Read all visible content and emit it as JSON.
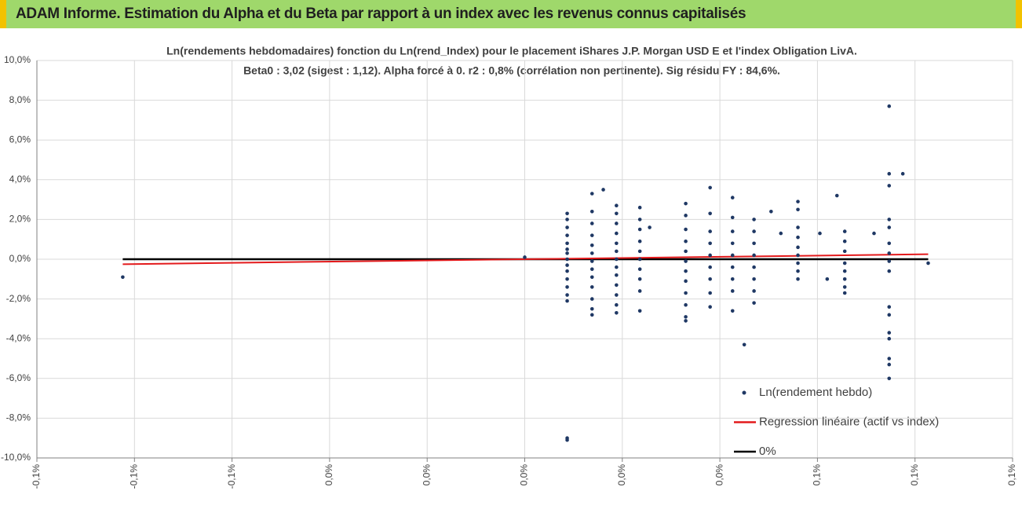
{
  "header": {
    "title": "ADAM Informe. Estimation du Alpha et du Beta par rapport à un index avec les revenus connus capitalisés"
  },
  "chart_data": {
    "type": "scatter",
    "title": "Ln(rendements hebdomadaires) fonction du Ln(rend_Index) pour le placement iShares J.P. Morgan USD E et l'index Obligation LivA.",
    "subtitle": "Beta0 : 3,02 (sigest : 1,12). Alpha forcé à 0. r2 : 0,8% (corrélation non pertinente). Sig résidu FY : 84,6%.",
    "xlim": [
      -0.1,
      0.1
    ],
    "ylim": [
      -10,
      10
    ],
    "xticks": [
      {
        "value": -0.1,
        "label": "-0,1%"
      },
      {
        "value": -0.08,
        "label": "-0,1%"
      },
      {
        "value": -0.06,
        "label": "-0,1%"
      },
      {
        "value": -0.04,
        "label": "0,0%"
      },
      {
        "value": -0.02,
        "label": "0,0%"
      },
      {
        "value": 0,
        "label": "0,0%"
      },
      {
        "value": 0.02,
        "label": "0,0%"
      },
      {
        "value": 0.04,
        "label": "0,0%"
      },
      {
        "value": 0.06,
        "label": "0,1%"
      },
      {
        "value": 0.08,
        "label": "0,1%"
      },
      {
        "value": 0.1,
        "label": "0,1%"
      }
    ],
    "yticks": [
      {
        "value": 10,
        "label": "10,0%"
      },
      {
        "value": 8,
        "label": "8,0%"
      },
      {
        "value": 6,
        "label": "6,0%"
      },
      {
        "value": 4,
        "label": "4,0%"
      },
      {
        "value": 2,
        "label": "2,0%"
      },
      {
        "value": 0,
        "label": "0,0%"
      },
      {
        "value": -2,
        "label": "-2,0%"
      },
      {
        "value": -4,
        "label": "-4,0%"
      },
      {
        "value": -6,
        "label": "-6,0%"
      },
      {
        "value": -8,
        "label": "-8,0%"
      },
      {
        "value": -10,
        "label": "-10,0%"
      }
    ],
    "grid": true,
    "legend": "bottom-right",
    "series": [
      {
        "name": "Ln(rendement hebdo)",
        "color": "#1f3864",
        "mode": "markers",
        "x": [
          0.0087,
          0.0087,
          0.0087,
          0.0087,
          0.0087,
          0.0087,
          0.0087,
          0.0087,
          0.0087,
          0.0087,
          0.0087,
          0.0087,
          0.0087,
          0.0087,
          0.0087,
          0.0087,
          0.0138,
          0.0138,
          0.0138,
          0.0138,
          0.0138,
          0.0138,
          0.0138,
          0.0138,
          0.0138,
          0.0138,
          0.0138,
          0.0138,
          0.0138,
          0.0161,
          0.0188,
          0.0188,
          0.0188,
          0.0188,
          0.0188,
          0.0188,
          0.0188,
          0.0188,
          0.0188,
          0.0188,
          0.0188,
          0.0188,
          0.0188,
          0.0236,
          0.0236,
          0.0236,
          0.0236,
          0.0236,
          0.0236,
          0.0236,
          0.0236,
          0.0236,
          0.0236,
          0.0256,
          0.033,
          0.033,
          0.033,
          0.033,
          0.033,
          0.033,
          0.033,
          0.033,
          0.033,
          0.033,
          0.033,
          0.033,
          0.038,
          0.038,
          0.038,
          0.038,
          0.038,
          0.038,
          0.038,
          0.038,
          0.038,
          0.0426,
          0.0426,
          0.0426,
          0.0426,
          0.0426,
          0.0426,
          0.0426,
          0.0426,
          0.0426,
          0.045,
          0.047,
          0.047,
          0.047,
          0.047,
          0.047,
          0.047,
          0.047,
          0.047,
          0.0505,
          0.0525,
          0.056,
          0.056,
          0.056,
          0.056,
          0.056,
          0.056,
          0.056,
          0.056,
          0.056,
          0.0605,
          0.062,
          0.064,
          0.0656,
          0.0656,
          0.0656,
          0.0656,
          0.0656,
          0.0656,
          0.0656,
          0.0656,
          0.0716,
          0.0747,
          0.0747,
          0.0747,
          0.0747,
          0.0747,
          0.0747,
          0.0747,
          0.0747,
          0.0747,
          0.0747,
          0.0747,
          0.0747,
          0.0747,
          0.0747,
          0.0747,
          0.0747,
          0.0775,
          0.0827,
          -0.0824,
          0
        ],
        "values": [
          2.3,
          2.0,
          1.6,
          1.2,
          0.8,
          0.5,
          0.3,
          0.0,
          -0.3,
          -0.6,
          -1.0,
          -1.4,
          -1.8,
          -2.1,
          -9.0,
          -9.1,
          3.3,
          2.4,
          1.8,
          1.2,
          0.7,
          0.3,
          -0.1,
          -0.5,
          -0.9,
          -1.4,
          -2.0,
          -2.5,
          -2.8,
          3.5,
          2.7,
          2.3,
          1.8,
          1.3,
          0.8,
          0.4,
          0.0,
          -0.4,
          -0.8,
          -1.3,
          -1.8,
          -2.3,
          -2.7,
          2.6,
          2.0,
          1.5,
          0.9,
          0.4,
          0.0,
          -0.5,
          -1.0,
          -1.6,
          -2.6,
          1.6,
          2.8,
          2.2,
          1.5,
          0.9,
          0.4,
          -0.1,
          -0.6,
          -1.1,
          -1.7,
          -2.3,
          -2.9,
          -3.1,
          3.6,
          2.3,
          1.4,
          0.8,
          0.2,
          -0.4,
          -1.0,
          -1.7,
          -2.4,
          3.1,
          2.1,
          1.4,
          0.8,
          0.2,
          -0.4,
          -1.0,
          -1.6,
          -2.6,
          -4.3,
          2.0,
          1.4,
          0.8,
          0.2,
          -0.4,
          -1.0,
          -1.6,
          -2.2,
          2.4,
          1.3,
          2.9,
          2.5,
          1.6,
          1.1,
          0.6,
          0.2,
          -0.2,
          -0.6,
          -1.0,
          1.3,
          -1.0,
          3.2,
          1.4,
          0.9,
          0.4,
          -0.2,
          -0.6,
          -1.0,
          -1.4,
          -1.7,
          1.3,
          7.7,
          4.3,
          3.7,
          2.0,
          1.6,
          0.8,
          0.3,
          -0.1,
          -0.6,
          -2.4,
          -2.8,
          -3.7,
          -4.0,
          -5.0,
          -5.3,
          -6.0,
          4.3,
          -0.2,
          -0.9,
          0.1
        ]
      },
      {
        "name": "Regression linéaire (actif vs index)",
        "color": "#e31a1c",
        "mode": "line",
        "x": [
          -0.0824,
          0.0827
        ],
        "values": [
          -0.25,
          0.25
        ]
      },
      {
        "name": "0%",
        "color": "#000000",
        "mode": "line",
        "x": [
          -0.0824,
          0.0827
        ],
        "values": [
          0,
          0
        ]
      }
    ]
  }
}
